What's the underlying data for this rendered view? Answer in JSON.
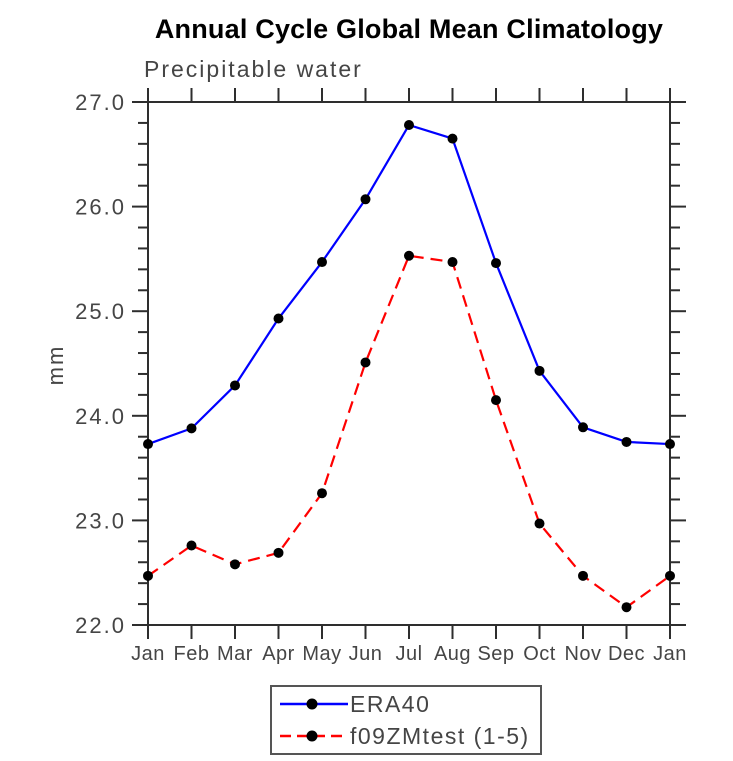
{
  "page": {
    "background": "#ffffff"
  },
  "chart_data": {
    "type": "line",
    "title": "Annual Cycle Global Mean Climatology",
    "subtitle": "Precipitable water",
    "ylabel": "mm",
    "xlabel": "",
    "x_tick_labels": [
      "Jan",
      "Feb",
      "Mar",
      "Apr",
      "May",
      "Jun",
      "Jul",
      "Aug",
      "Sep",
      "Oct",
      "Nov",
      "Dec",
      "Jan"
    ],
    "y_ticks": [
      22.0,
      23.0,
      24.0,
      25.0,
      26.0,
      27.0
    ],
    "y_tick_labels": [
      "22.0",
      "23.0",
      "24.0",
      "25.0",
      "26.0",
      "27.0"
    ],
    "ylim": [
      22.0,
      27.0
    ],
    "y_minor_tick_interval": 0.2,
    "grid": false,
    "legend_position": "bottom-center",
    "axis_color": "#2e2e2e",
    "label_color": "#454545",
    "marker_color": "#000000",
    "series": [
      {
        "name": "ERA40",
        "color": "#0000ff",
        "line_style": "solid",
        "marker": "circle",
        "values": [
          23.73,
          23.88,
          24.29,
          24.93,
          25.47,
          26.07,
          26.78,
          26.65,
          25.46,
          24.43,
          23.89,
          23.75,
          23.73
        ]
      },
      {
        "name": "f09ZMtest (1-5)",
        "color": "#ff0000",
        "line_style": "dashed",
        "marker": "circle",
        "values": [
          22.47,
          22.76,
          22.58,
          22.69,
          23.26,
          24.51,
          25.53,
          25.47,
          24.15,
          22.97,
          22.47,
          22.17,
          22.47
        ]
      }
    ]
  }
}
